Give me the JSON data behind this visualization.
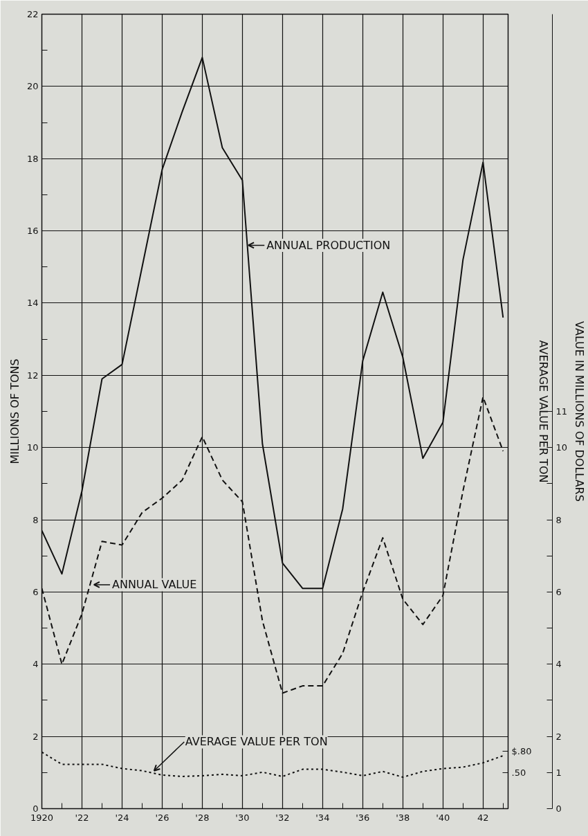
{
  "chart_data": {
    "type": "line",
    "xlabel": null,
    "ylabel": "MILLIONS OF TONS",
    "y2label": "VALUE IN MILLIONS OF DOLLARS",
    "y3label": "AVERAGE VALUE PER TON",
    "x": [
      1920,
      1921,
      1922,
      1923,
      1924,
      1925,
      1926,
      1927,
      1928,
      1929,
      1930,
      1931,
      1932,
      1933,
      1934,
      1935,
      1936,
      1937,
      1938,
      1939,
      1940,
      1941,
      1942,
      1943
    ],
    "series": [
      {
        "color": "#111111",
        "line_style": "solid",
        "values": [
          7.7,
          6.5,
          8.8,
          11.9,
          12.3,
          15.0,
          17.7,
          19.3,
          20.8,
          18.3,
          17.4,
          10.1,
          6.8,
          6.1,
          6.1,
          8.3,
          12.4,
          14.3,
          12.5,
          9.7,
          10.7,
          15.2,
          17.9,
          13.6
        ]
      },
      {
        "color": "#111111",
        "line_style": "dashed",
        "axis": "y2",
        "values": [
          6.1,
          4.0,
          5.4,
          7.4,
          7.3,
          8.2,
          8.6,
          9.1,
          10.3,
          9.1,
          8.5,
          5.2,
          3.2,
          3.4,
          3.4,
          4.3,
          6.0,
          7.5,
          5.8,
          5.1,
          5.9,
          8.8,
          11.4,
          9.9
        ]
      },
      {
        "color": "#111111",
        "line_style": "dotted",
        "axis": "y3",
        "values": [
          0.79,
          0.62,
          0.62,
          0.62,
          0.56,
          0.53,
          0.47,
          0.45,
          0.46,
          0.48,
          0.46,
          0.51,
          0.45,
          0.55,
          0.55,
          0.51,
          0.46,
          0.52,
          0.44,
          0.52,
          0.56,
          0.58,
          0.64,
          0.74
        ]
      }
    ],
    "xlim": [
      1920,
      1943.25
    ],
    "xticks": [
      {
        "value": 1920,
        "label": "1920"
      },
      {
        "value": 1921,
        "label": null
      },
      {
        "value": 1922,
        "label": "'22"
      },
      {
        "value": 1923,
        "label": null
      },
      {
        "value": 1924,
        "label": "'24"
      },
      {
        "value": 1925,
        "label": null
      },
      {
        "value": 1926,
        "label": "'26"
      },
      {
        "value": 1927,
        "label": null
      },
      {
        "value": 1928,
        "label": "'28"
      },
      {
        "value": 1929,
        "label": null
      },
      {
        "value": 1930,
        "label": "'30"
      },
      {
        "value": 1931,
        "label": null
      },
      {
        "value": 1932,
        "label": "'32"
      },
      {
        "value": 1933,
        "label": null
      },
      {
        "value": 1934,
        "label": "'34"
      },
      {
        "value": 1935,
        "label": null
      },
      {
        "value": 1936,
        "label": "'36"
      },
      {
        "value": 1937,
        "label": null
      },
      {
        "value": 1938,
        "label": "'38"
      },
      {
        "value": 1939,
        "label": null
      },
      {
        "value": 1940,
        "label": "'40"
      },
      {
        "value": 1941,
        "label": null
      },
      {
        "value": 1942,
        "label": "42"
      },
      {
        "value": 1943,
        "label": null
      }
    ],
    "ylim": [
      0,
      22
    ],
    "yticks": [
      0,
      {
        "value": 1,
        "label": null
      },
      2,
      {
        "value": 3,
        "label": null
      },
      4,
      {
        "value": 5,
        "label": null
      },
      6,
      {
        "value": 7,
        "label": null
      },
      8,
      {
        "value": 9,
        "label": null
      },
      10,
      {
        "value": 11,
        "label": null
      },
      12,
      {
        "value": 13,
        "label": null
      },
      14,
      {
        "value": 15,
        "label": null
      },
      16,
      {
        "value": 17,
        "label": null
      },
      18,
      {
        "value": 19,
        "label": null
      },
      20,
      {
        "value": 21,
        "label": null
      },
      22
    ],
    "y2lim": [
      0,
      22
    ],
    "y2ticks": [
      0,
      1,
      2,
      {
        "value": 3,
        "label": null
      },
      4,
      {
        "value": 5,
        "label": null
      },
      6,
      {
        "value": 7,
        "label": null
      },
      8,
      {
        "value": 9,
        "label": null
      },
      10,
      11
    ],
    "y3lim": [
      0,
      11.1
    ],
    "y3ticks": [
      {
        "value": 0.5,
        "label": ".50"
      },
      {
        "value": 0.8,
        "label": "$.80"
      }
    ],
    "grid": true,
    "annotations": [
      {
        "text": "ANNUAL PRODUCTION",
        "x": 1930.3,
        "y": 15.6
      },
      {
        "text": "ANNUAL VALUE",
        "x": 1922.6,
        "y": 6.2
      },
      {
        "text": "AVERAGE VALUE PER TON",
        "x": 1925.6,
        "y": 1.05
      }
    ]
  }
}
